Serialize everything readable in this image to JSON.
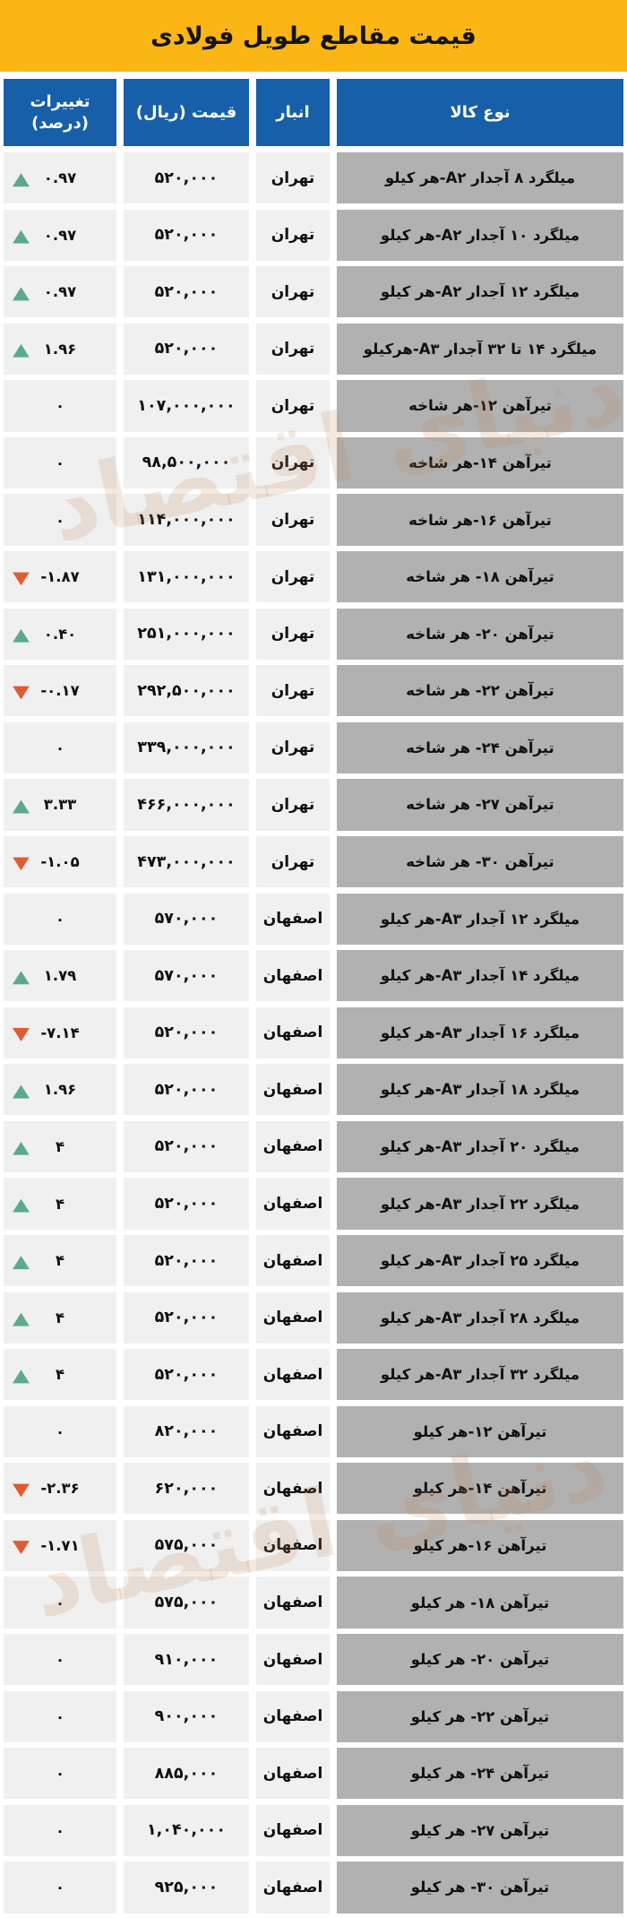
{
  "title": "قیمت مقاطع طویل فولادی",
  "watermark": "دنیای اقتصاد",
  "header": {
    "change_line1": "تغییرات",
    "change_line2": "(درصد)"
  },
  "colors": {
    "title_bg": "#FBB615",
    "header_bg": "#175FA9",
    "header_text": "#FFFFFF",
    "product_cell_bg": "#B1B1B1",
    "value_cell_bg": "#F0F0F0",
    "up_triangle": "#5CA98B",
    "down_triangle": "#DF5B33"
  },
  "chart_data": {
    "type": "table",
    "title": "قیمت مقاطع طویل فولادی",
    "columns": [
      "نوع کالا",
      "انبار",
      "قیمت (ریال)",
      "تغییرات (درصد)"
    ],
    "rows": [
      {
        "product": "میلگرد ۸ آجدار A۲-هر کیلو",
        "warehouse": "تهران",
        "price": "۵۲۰,۰۰۰",
        "change": "۰.۹۷",
        "direction": "up"
      },
      {
        "product": "میلگرد ۱۰ آجدار A۲-هر کیلو",
        "warehouse": "تهران",
        "price": "۵۲۰,۰۰۰",
        "change": "۰.۹۷",
        "direction": "up"
      },
      {
        "product": "میلگرد ۱۲ آجدار A۲-هر کیلو",
        "warehouse": "تهران",
        "price": "۵۲۰,۰۰۰",
        "change": "۰.۹۷",
        "direction": "up"
      },
      {
        "product": "میلگرد ۱۴ تا ۳۲ آجدار A۳-هرکیلو",
        "warehouse": "تهران",
        "price": "۵۲۰,۰۰۰",
        "change": "۱.۹۶",
        "direction": "up"
      },
      {
        "product": "تیرآهن ۱۲-هر شاخه",
        "warehouse": "تهران",
        "price": "۱۰۷,۰۰۰,۰۰۰",
        "change": "۰",
        "direction": "none"
      },
      {
        "product": "تیرآهن ۱۴-هر شاخه",
        "warehouse": "تهران",
        "price": "۹۸,۵۰۰,۰۰۰",
        "change": "۰",
        "direction": "none"
      },
      {
        "product": "تیرآهن ۱۶-هر شاخه",
        "warehouse": "تهران",
        "price": "۱۱۴,۰۰۰,۰۰۰",
        "change": "۰",
        "direction": "none"
      },
      {
        "product": "تیرآهن ۱۸- هر شاخه",
        "warehouse": "تهران",
        "price": "۱۳۱,۰۰۰,۰۰۰",
        "change": "-۱.۸۷",
        "direction": "down"
      },
      {
        "product": "تیرآهن ۲۰- هر شاخه",
        "warehouse": "تهران",
        "price": "۲۵۱,۰۰۰,۰۰۰",
        "change": "۰.۴۰",
        "direction": "up"
      },
      {
        "product": "تیرآهن ۲۲- هر شاخه",
        "warehouse": "تهران",
        "price": "۲۹۲,۵۰۰,۰۰۰",
        "change": "-۰.۱۷",
        "direction": "down"
      },
      {
        "product": "تیرآهن ۲۴- هر شاخه",
        "warehouse": "تهران",
        "price": "۳۳۹,۰۰۰,۰۰۰",
        "change": "۰",
        "direction": "none"
      },
      {
        "product": "تیرآهن ۲۷- هر شاخه",
        "warehouse": "تهران",
        "price": "۴۶۶,۰۰۰,۰۰۰",
        "change": "۳.۳۳",
        "direction": "up"
      },
      {
        "product": "تیرآهن ۳۰- هر شاخه",
        "warehouse": "تهران",
        "price": "۴۷۳,۰۰۰,۰۰۰",
        "change": "-۱.۰۵",
        "direction": "down"
      },
      {
        "product": "میلگرد ۱۲ آجدار A۳-هر کیلو",
        "warehouse": "اصفهان",
        "price": "۵۷۰,۰۰۰",
        "change": "۰",
        "direction": "none"
      },
      {
        "product": "میلگرد ۱۴ آجدار A۳-هر کیلو",
        "warehouse": "اصفهان",
        "price": "۵۷۰,۰۰۰",
        "change": "۱.۷۹",
        "direction": "up"
      },
      {
        "product": "میلگرد ۱۶ آجدار A۳-هر کیلو",
        "warehouse": "اصفهان",
        "price": "۵۲۰,۰۰۰",
        "change": "-۷.۱۴",
        "direction": "down"
      },
      {
        "product": "میلگرد ۱۸ آجدار A۳-هر کیلو",
        "warehouse": "اصفهان",
        "price": "۵۲۰,۰۰۰",
        "change": "۱.۹۶",
        "direction": "up"
      },
      {
        "product": "میلگرد ۲۰ آجدار A۳-هر کیلو",
        "warehouse": "اصفهان",
        "price": "۵۲۰,۰۰۰",
        "change": "۴",
        "direction": "up"
      },
      {
        "product": "میلگرد ۲۲ آجدار A۳-هر کیلو",
        "warehouse": "اصفهان",
        "price": "۵۲۰,۰۰۰",
        "change": "۴",
        "direction": "up"
      },
      {
        "product": "میلگرد ۲۵ آجدار A۳-هر کیلو",
        "warehouse": "اصفهان",
        "price": "۵۲۰,۰۰۰",
        "change": "۴",
        "direction": "up"
      },
      {
        "product": "میلگرد ۲۸ آجدار A۳-هر کیلو",
        "warehouse": "اصفهان",
        "price": "۵۲۰,۰۰۰",
        "change": "۴",
        "direction": "up"
      },
      {
        "product": "میلگرد ۳۲ آجدار A۳-هر کیلو",
        "warehouse": "اصفهان",
        "price": "۵۲۰,۰۰۰",
        "change": "۴",
        "direction": "up"
      },
      {
        "product": "تیرآهن ۱۲-هر کیلو",
        "warehouse": "اصفهان",
        "price": "۸۲۰,۰۰۰",
        "change": "۰",
        "direction": "none"
      },
      {
        "product": "تیرآهن ۱۴-هر کیلو",
        "warehouse": "اصفهان",
        "price": "۶۲۰,۰۰۰",
        "change": "-۲.۳۶",
        "direction": "down"
      },
      {
        "product": "تیرآهن ۱۶-هر کیلو",
        "warehouse": "اصفهان",
        "price": "۵۷۵,۰۰۰",
        "change": "-۱.۷۱",
        "direction": "down"
      },
      {
        "product": "تیرآهن ۱۸- هر کیلو",
        "warehouse": "اصفهان",
        "price": "۵۷۵,۰۰۰",
        "change": "۰",
        "direction": "none"
      },
      {
        "product": "تیرآهن ۲۰- هر کیلو",
        "warehouse": "اصفهان",
        "price": "۹۱۰,۰۰۰",
        "change": "۰",
        "direction": "none"
      },
      {
        "product": "تیرآهن ۲۲- هر کیلو",
        "warehouse": "اصفهان",
        "price": "۹۰۰,۰۰۰",
        "change": "۰",
        "direction": "none"
      },
      {
        "product": "تیرآهن ۲۴- هر کیلو",
        "warehouse": "اصفهان",
        "price": "۸۸۵,۰۰۰",
        "change": "۰",
        "direction": "none"
      },
      {
        "product": "تیرآهن ۲۷- هر کیلو",
        "warehouse": "اصفهان",
        "price": "۱,۰۴۰,۰۰۰",
        "change": "۰",
        "direction": "none"
      },
      {
        "product": "تیرآهن ۳۰- هر کیلو",
        "warehouse": "اصفهان",
        "price": "۹۲۵,۰۰۰",
        "change": "۰",
        "direction": "none"
      }
    ]
  }
}
